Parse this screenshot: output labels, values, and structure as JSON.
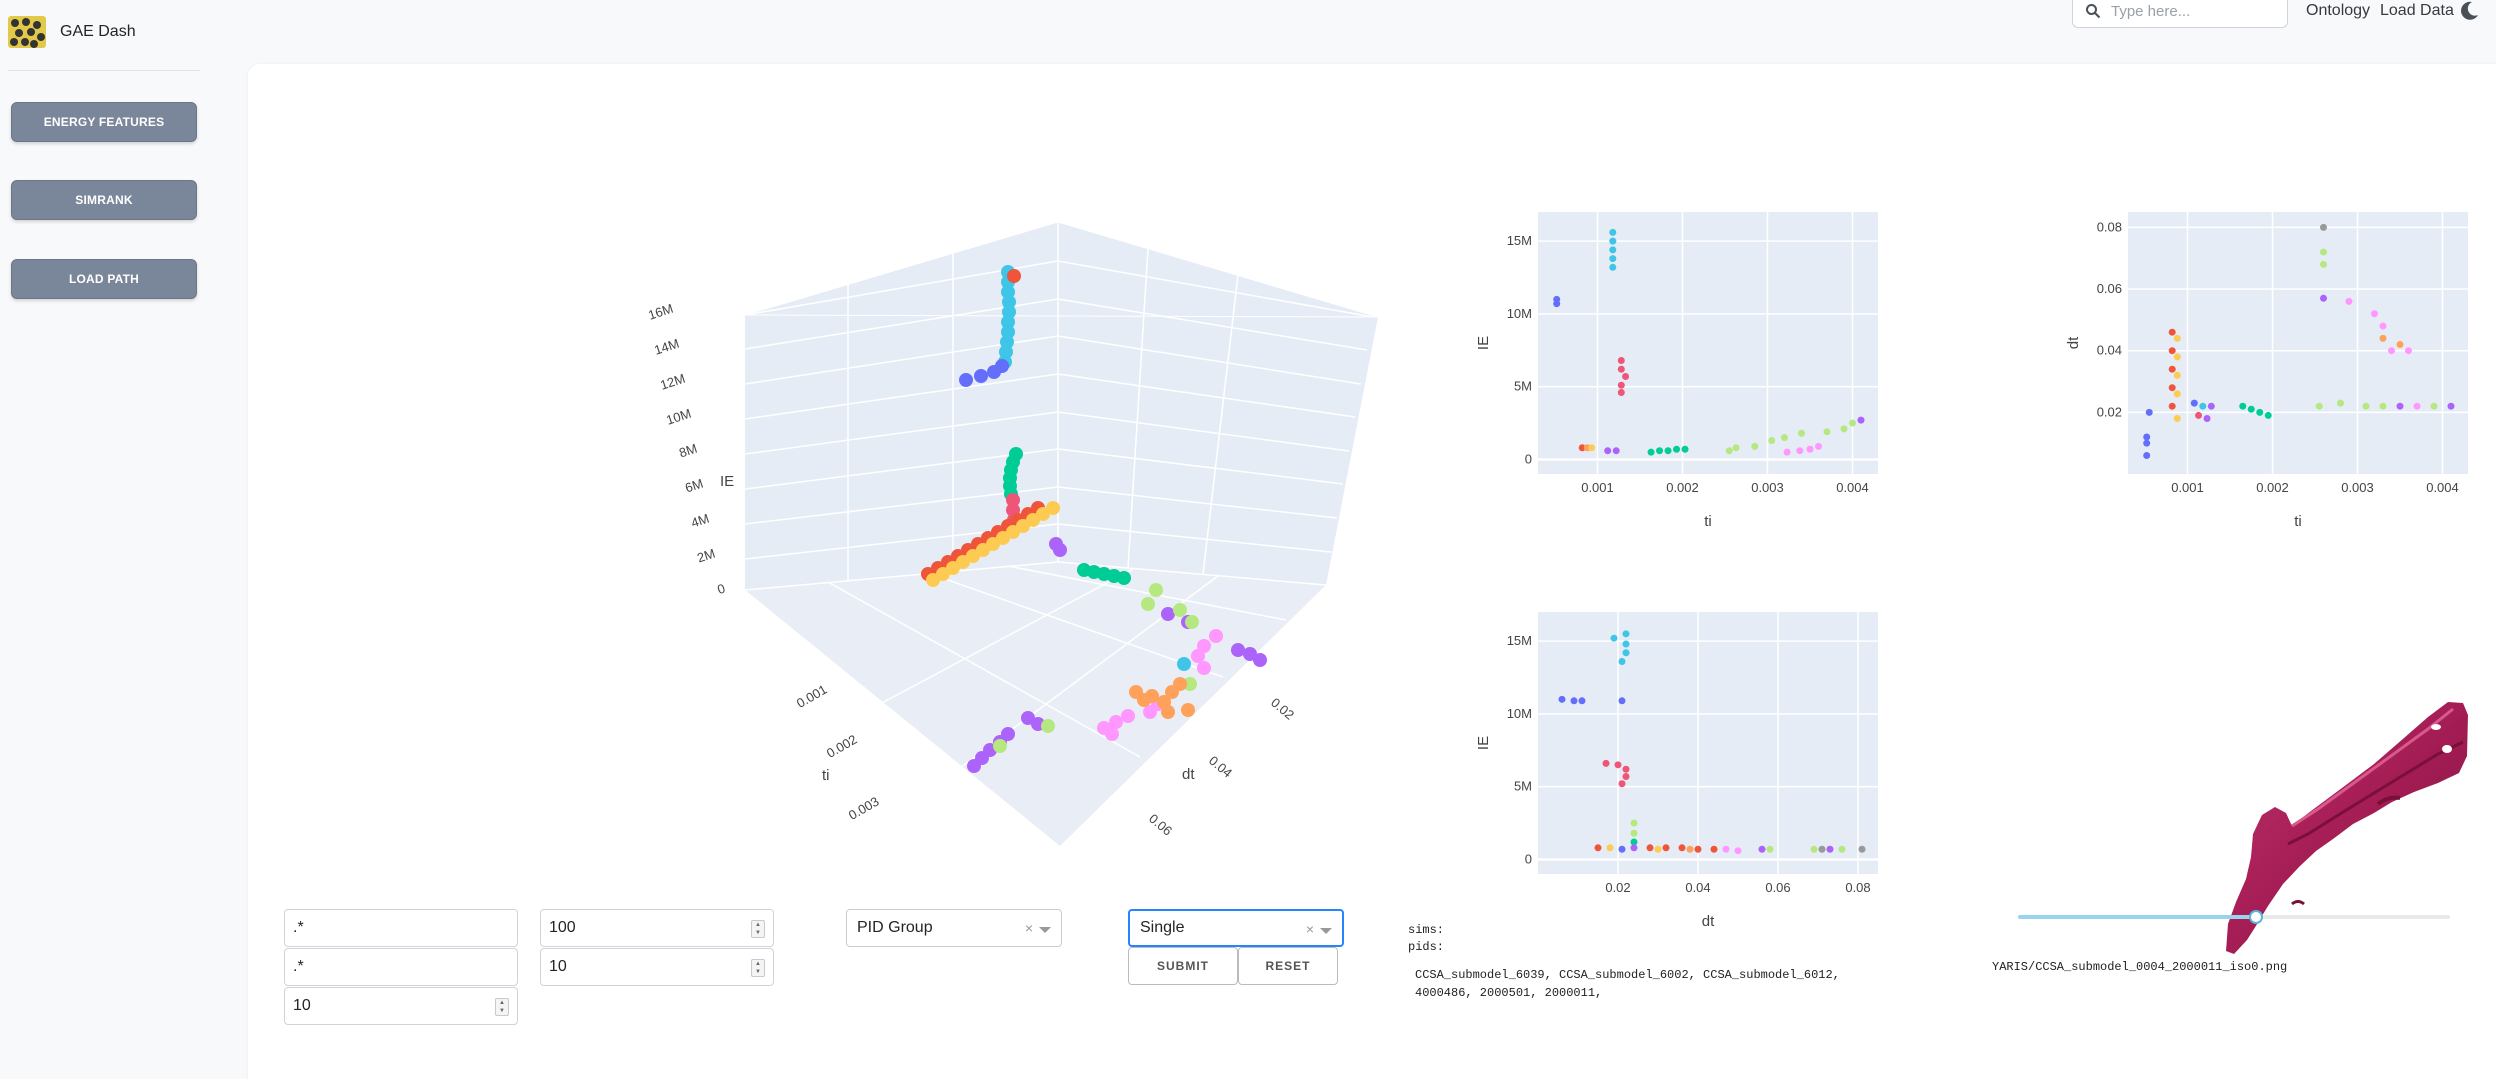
{
  "app": {
    "title": "GAE Dash"
  },
  "nav": {
    "search_placeholder": "Type here...",
    "links": [
      "Ontology",
      "Load Data"
    ]
  },
  "sidebar": {
    "items": [
      {
        "label": "ENERGY FEATURES"
      },
      {
        "label": "SIMRANK"
      },
      {
        "label": "LOAD PATH"
      }
    ]
  },
  "plot3d": {
    "axes": {
      "z_title": "IE",
      "z_ticks": [
        "0",
        "2M",
        "4M",
        "6M",
        "8M",
        "10M",
        "12M",
        "14M",
        "16M"
      ],
      "x_title": "ti",
      "x_ticks": [
        "0.001",
        "0.002",
        "0.003"
      ],
      "y_title": "dt",
      "y_ticks": [
        "0.02",
        "0.04",
        "0.06"
      ]
    }
  },
  "chart_data": [
    {
      "type": "scatter",
      "xlabel": "ti",
      "ylabel": "IE",
      "xlim": [
        0.0003,
        0.0043
      ],
      "ylim": [
        -1000000,
        17000000
      ],
      "x_ticks": [
        "0.001",
        "0.002",
        "0.003",
        "0.004"
      ],
      "y_ticks": [
        "0",
        "5M",
        "10M",
        "15M"
      ],
      "points": [
        {
          "x": 0.00052,
          "y": 11000000,
          "c": "#636efa"
        },
        {
          "x": 0.00052,
          "y": 10700000,
          "c": "#636efa"
        },
        {
          "x": 0.00118,
          "y": 15600000,
          "c": "#3ec5e7"
        },
        {
          "x": 0.00118,
          "y": 15000000,
          "c": "#3ec5e7"
        },
        {
          "x": 0.00118,
          "y": 14400000,
          "c": "#3ec5e7"
        },
        {
          "x": 0.00118,
          "y": 13800000,
          "c": "#3ec5e7"
        },
        {
          "x": 0.00118,
          "y": 13200000,
          "c": "#3ec5e7"
        },
        {
          "x": 0.00128,
          "y": 6800000,
          "c": "#ef5576"
        },
        {
          "x": 0.00128,
          "y": 6200000,
          "c": "#ef5576"
        },
        {
          "x": 0.00133,
          "y": 5700000,
          "c": "#ef5576"
        },
        {
          "x": 0.00128,
          "y": 5100000,
          "c": "#ef5576"
        },
        {
          "x": 0.00128,
          "y": 4600000,
          "c": "#ef5576"
        },
        {
          "x": 0.00082,
          "y": 800000,
          "c": "#ef553b"
        },
        {
          "x": 0.00088,
          "y": 800000,
          "c": "#ffa15a"
        },
        {
          "x": 0.00093,
          "y": 800000,
          "c": "#fecb52"
        },
        {
          "x": 0.00112,
          "y": 600000,
          "c": "#ab63fa"
        },
        {
          "x": 0.00122,
          "y": 600000,
          "c": "#ab63fa"
        },
        {
          "x": 0.00163,
          "y": 500000,
          "c": "#00cc96"
        },
        {
          "x": 0.00173,
          "y": 600000,
          "c": "#00cc96"
        },
        {
          "x": 0.00183,
          "y": 600000,
          "c": "#00cc96"
        },
        {
          "x": 0.00193,
          "y": 700000,
          "c": "#00cc96"
        },
        {
          "x": 0.00203,
          "y": 700000,
          "c": "#00cc96"
        },
        {
          "x": 0.00255,
          "y": 600000,
          "c": "#b6e880"
        },
        {
          "x": 0.00263,
          "y": 800000,
          "c": "#b6e880"
        },
        {
          "x": 0.00285,
          "y": 900000,
          "c": "#b6e880"
        },
        {
          "x": 0.00305,
          "y": 1300000,
          "c": "#b6e880"
        },
        {
          "x": 0.0032,
          "y": 1500000,
          "c": "#b6e880"
        },
        {
          "x": 0.0034,
          "y": 1800000,
          "c": "#b6e880"
        },
        {
          "x": 0.00323,
          "y": 500000,
          "c": "#ff97ff"
        },
        {
          "x": 0.00338,
          "y": 600000,
          "c": "#ff97ff"
        },
        {
          "x": 0.0035,
          "y": 700000,
          "c": "#ff97ff"
        },
        {
          "x": 0.0036,
          "y": 900000,
          "c": "#ff97ff"
        },
        {
          "x": 0.0037,
          "y": 1900000,
          "c": "#b6e880"
        },
        {
          "x": 0.0039,
          "y": 2100000,
          "c": "#b6e880"
        },
        {
          "x": 0.004,
          "y": 2500000,
          "c": "#b6e880"
        },
        {
          "x": 0.0041,
          "y": 2700000,
          "c": "#ab63fa"
        }
      ]
    },
    {
      "type": "scatter",
      "xlabel": "ti",
      "ylabel": "dt",
      "xlim": [
        0.0003,
        0.0043
      ],
      "ylim": [
        0.0,
        0.085
      ],
      "x_ticks": [
        "0.001",
        "0.002",
        "0.003",
        "0.004"
      ],
      "y_ticks": [
        "0.02",
        "0.04",
        "0.06",
        "0.08"
      ],
      "points": [
        {
          "x": 0.00052,
          "y": 0.006,
          "c": "#636efa"
        },
        {
          "x": 0.00052,
          "y": 0.01,
          "c": "#636efa"
        },
        {
          "x": 0.00052,
          "y": 0.012,
          "c": "#636efa"
        },
        {
          "x": 0.00055,
          "y": 0.02,
          "c": "#636efa"
        },
        {
          "x": 0.00082,
          "y": 0.046,
          "c": "#ef553b"
        },
        {
          "x": 0.00082,
          "y": 0.04,
          "c": "#ef553b"
        },
        {
          "x": 0.00082,
          "y": 0.034,
          "c": "#ef553b"
        },
        {
          "x": 0.00082,
          "y": 0.028,
          "c": "#ef553b"
        },
        {
          "x": 0.00082,
          "y": 0.022,
          "c": "#ef553b"
        },
        {
          "x": 0.00088,
          "y": 0.044,
          "c": "#fecb52"
        },
        {
          "x": 0.00088,
          "y": 0.038,
          "c": "#fecb52"
        },
        {
          "x": 0.00088,
          "y": 0.032,
          "c": "#fecb52"
        },
        {
          "x": 0.00088,
          "y": 0.026,
          "c": "#fecb52"
        },
        {
          "x": 0.00088,
          "y": 0.018,
          "c": "#fecb52"
        },
        {
          "x": 0.00108,
          "y": 0.023,
          "c": "#636efa"
        },
        {
          "x": 0.00113,
          "y": 0.019,
          "c": "#ef5576"
        },
        {
          "x": 0.00118,
          "y": 0.022,
          "c": "#3ec5e7"
        },
        {
          "x": 0.00123,
          "y": 0.018,
          "c": "#ab63fa"
        },
        {
          "x": 0.00128,
          "y": 0.022,
          "c": "#ab63fa"
        },
        {
          "x": 0.00165,
          "y": 0.022,
          "c": "#00cc96"
        },
        {
          "x": 0.00175,
          "y": 0.021,
          "c": "#00cc96"
        },
        {
          "x": 0.00185,
          "y": 0.02,
          "c": "#00cc96"
        },
        {
          "x": 0.00195,
          "y": 0.019,
          "c": "#00cc96"
        },
        {
          "x": 0.00255,
          "y": 0.022,
          "c": "#b6e880"
        },
        {
          "x": 0.0026,
          "y": 0.08,
          "c": "#999999"
        },
        {
          "x": 0.0026,
          "y": 0.072,
          "c": "#b6e880"
        },
        {
          "x": 0.0026,
          "y": 0.068,
          "c": "#b6e880"
        },
        {
          "x": 0.0026,
          "y": 0.057,
          "c": "#ab63fa"
        },
        {
          "x": 0.0028,
          "y": 0.023,
          "c": "#b6e880"
        },
        {
          "x": 0.0029,
          "y": 0.056,
          "c": "#ff97ff"
        },
        {
          "x": 0.0032,
          "y": 0.052,
          "c": "#ff97ff"
        },
        {
          "x": 0.0033,
          "y": 0.048,
          "c": "#ff97ff"
        },
        {
          "x": 0.0033,
          "y": 0.044,
          "c": "#ffa15a"
        },
        {
          "x": 0.0034,
          "y": 0.04,
          "c": "#ff97ff"
        },
        {
          "x": 0.0035,
          "y": 0.042,
          "c": "#ffa15a"
        },
        {
          "x": 0.0036,
          "y": 0.04,
          "c": "#ff97ff"
        },
        {
          "x": 0.0031,
          "y": 0.022,
          "c": "#b6e880"
        },
        {
          "x": 0.0033,
          "y": 0.022,
          "c": "#b6e880"
        },
        {
          "x": 0.0035,
          "y": 0.022,
          "c": "#ab63fa"
        },
        {
          "x": 0.0037,
          "y": 0.022,
          "c": "#ff97ff"
        },
        {
          "x": 0.0039,
          "y": 0.022,
          "c": "#b6e880"
        },
        {
          "x": 0.0041,
          "y": 0.022,
          "c": "#ab63fa"
        }
      ]
    },
    {
      "type": "scatter",
      "xlabel": "dt",
      "ylabel": "IE",
      "xlim": [
        0.0,
        0.085
      ],
      "ylim": [
        -1000000,
        17000000
      ],
      "x_ticks": [
        "0.02",
        "0.04",
        "0.06",
        "0.08"
      ],
      "y_ticks": [
        "0",
        "5M",
        "10M",
        "15M"
      ],
      "points": [
        {
          "x": 0.006,
          "y": 11000000,
          "c": "#636efa"
        },
        {
          "x": 0.009,
          "y": 10900000,
          "c": "#636efa"
        },
        {
          "x": 0.011,
          "y": 10900000,
          "c": "#636efa"
        },
        {
          "x": 0.019,
          "y": 15200000,
          "c": "#3ec5e7"
        },
        {
          "x": 0.022,
          "y": 15500000,
          "c": "#3ec5e7"
        },
        {
          "x": 0.022,
          "y": 14800000,
          "c": "#3ec5e7"
        },
        {
          "x": 0.022,
          "y": 14200000,
          "c": "#3ec5e7"
        },
        {
          "x": 0.021,
          "y": 13600000,
          "c": "#3ec5e7"
        },
        {
          "x": 0.021,
          "y": 10900000,
          "c": "#636efa"
        },
        {
          "x": 0.017,
          "y": 6600000,
          "c": "#ef5576"
        },
        {
          "x": 0.02,
          "y": 6500000,
          "c": "#ef5576"
        },
        {
          "x": 0.022,
          "y": 6200000,
          "c": "#ef5576"
        },
        {
          "x": 0.022,
          "y": 5700000,
          "c": "#ef5576"
        },
        {
          "x": 0.021,
          "y": 5200000,
          "c": "#ef5576"
        },
        {
          "x": 0.024,
          "y": 2500000,
          "c": "#b6e880"
        },
        {
          "x": 0.024,
          "y": 1800000,
          "c": "#b6e880"
        },
        {
          "x": 0.024,
          "y": 1200000,
          "c": "#00cc96"
        },
        {
          "x": 0.015,
          "y": 800000,
          "c": "#ef553b"
        },
        {
          "x": 0.018,
          "y": 800000,
          "c": "#fecb52"
        },
        {
          "x": 0.021,
          "y": 700000,
          "c": "#636efa"
        },
        {
          "x": 0.024,
          "y": 800000,
          "c": "#ab63fa"
        },
        {
          "x": 0.028,
          "y": 800000,
          "c": "#ef553b"
        },
        {
          "x": 0.032,
          "y": 800000,
          "c": "#ef553b"
        },
        {
          "x": 0.036,
          "y": 800000,
          "c": "#ef553b"
        },
        {
          "x": 0.04,
          "y": 700000,
          "c": "#ef553b"
        },
        {
          "x": 0.044,
          "y": 700000,
          "c": "#ef553b"
        },
        {
          "x": 0.03,
          "y": 700000,
          "c": "#fecb52"
        },
        {
          "x": 0.038,
          "y": 700000,
          "c": "#ffa15a"
        },
        {
          "x": 0.047,
          "y": 700000,
          "c": "#ff97ff"
        },
        {
          "x": 0.05,
          "y": 600000,
          "c": "#ff97ff"
        },
        {
          "x": 0.056,
          "y": 700000,
          "c": "#ab63fa"
        },
        {
          "x": 0.058,
          "y": 700000,
          "c": "#b6e880"
        },
        {
          "x": 0.069,
          "y": 700000,
          "c": "#b6e880"
        },
        {
          "x": 0.071,
          "y": 700000,
          "c": "#999999"
        },
        {
          "x": 0.073,
          "y": 700000,
          "c": "#ab63fa"
        },
        {
          "x": 0.076,
          "y": 700000,
          "c": "#b6e880"
        },
        {
          "x": 0.081,
          "y": 700000,
          "c": "#999999"
        }
      ]
    }
  ],
  "controls": {
    "regex1": ".*",
    "regex2": ".*",
    "num_a": "100",
    "num_b": "10",
    "num_c": "10",
    "group_select": "PID Group",
    "mode_select": "Single",
    "submit_label": "SUBMIT",
    "reset_label": "RESET"
  },
  "info": {
    "sims_label": "sims:",
    "pids_label": "pids:",
    "line1": "CCSA_submodel_6039, CCSA_submodel_6002, CCSA_submodel_6012,",
    "line2": "4000486, 2000501, 2000011,"
  },
  "image_viewer": {
    "caption": "YARIS/CCSA_submodel_0004_2000011_iso0.png",
    "part_color": "#a41d54",
    "slider_value": 0.55
  },
  "colors": {
    "plot_bg": "#e5ecf6",
    "sidebar_button": "#7a8699"
  }
}
